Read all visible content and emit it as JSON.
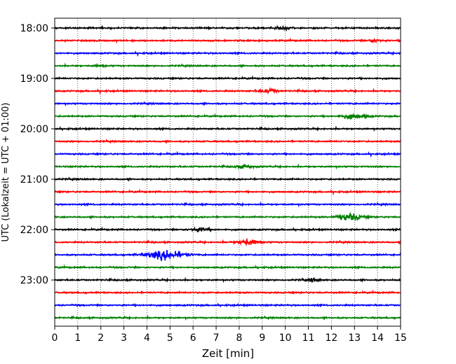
{
  "chart_data": {
    "type": "line",
    "subtype": "helicorder",
    "xlabel": "Zeit  [min]",
    "ylabel": "UTC (Lokalzeit = UTC + 01:00)",
    "xlim": [
      0,
      15
    ],
    "x_ticks": [
      0,
      1,
      2,
      3,
      4,
      5,
      6,
      7,
      8,
      9,
      10,
      11,
      12,
      13,
      14,
      15
    ],
    "y_tick_labels": [
      "18:00",
      "19:00",
      "20:00",
      "21:00",
      "22:00",
      "23:00"
    ],
    "grid": "vertical dotted lines at each minute",
    "trace_colors": [
      "#000000",
      "#ff0000",
      "#0000ff",
      "#008000"
    ],
    "traces": [
      {
        "start": "18:00",
        "color": "#000000",
        "events": [
          {
            "minute": 9.9,
            "strength": 0.5
          }
        ]
      },
      {
        "start": "18:15",
        "color": "#ff0000",
        "events": [
          {
            "minute": 13.9,
            "strength": 0.4
          }
        ]
      },
      {
        "start": "18:30",
        "color": "#0000ff",
        "events": []
      },
      {
        "start": "18:45",
        "color": "#008000",
        "events": [
          {
            "minute": 2.0,
            "strength": 0.3
          }
        ]
      },
      {
        "start": "19:00",
        "color": "#000000",
        "events": []
      },
      {
        "start": "19:15",
        "color": "#ff0000",
        "events": [
          {
            "minute": 9.3,
            "strength": 0.6
          }
        ]
      },
      {
        "start": "19:30",
        "color": "#0000ff",
        "events": []
      },
      {
        "start": "19:45",
        "color": "#008000",
        "events": [
          {
            "minute": 13.0,
            "strength": 0.9
          }
        ]
      },
      {
        "start": "20:00",
        "color": "#000000",
        "events": []
      },
      {
        "start": "20:15",
        "color": "#ff0000",
        "events": []
      },
      {
        "start": "20:30",
        "color": "#0000ff",
        "events": []
      },
      {
        "start": "20:45",
        "color": "#008000",
        "events": [
          {
            "minute": 8.2,
            "strength": 0.5
          }
        ]
      },
      {
        "start": "21:00",
        "color": "#000000",
        "events": []
      },
      {
        "start": "21:15",
        "color": "#ff0000",
        "events": []
      },
      {
        "start": "21:30",
        "color": "#0000ff",
        "events": []
      },
      {
        "start": "21:45",
        "color": "#008000",
        "events": [
          {
            "minute": 12.8,
            "strength": 1.0
          }
        ]
      },
      {
        "start": "22:00",
        "color": "#000000",
        "events": [
          {
            "minute": 6.3,
            "strength": 0.6
          }
        ]
      },
      {
        "start": "22:15",
        "color": "#ff0000",
        "events": [
          {
            "minute": 8.4,
            "strength": 0.9
          }
        ]
      },
      {
        "start": "22:30",
        "color": "#0000ff",
        "events": [
          {
            "minute": 4.8,
            "strength": 1.6
          }
        ]
      },
      {
        "start": "22:45",
        "color": "#008000",
        "events": []
      },
      {
        "start": "23:00",
        "color": "#000000",
        "events": [
          {
            "minute": 11.2,
            "strength": 0.4
          }
        ]
      },
      {
        "start": "23:15",
        "color": "#ff0000",
        "events": []
      },
      {
        "start": "23:30",
        "color": "#0000ff",
        "events": []
      },
      {
        "start": "23:45",
        "color": "#008000",
        "events": []
      }
    ]
  }
}
